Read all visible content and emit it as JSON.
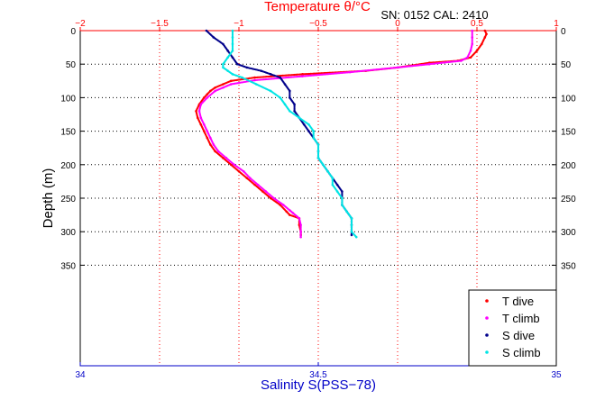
{
  "chart_data": {
    "type": "scatter",
    "title": "Temperature θ/°C",
    "info": "SN: 0152  CAL: 2410",
    "ylabel": "Depth (m)",
    "xlabel_bottom": "Salinity S(PSS−78)",
    "ylim": [
      0,
      500
    ],
    "y_reversed": true,
    "yticks": [
      0,
      50,
      100,
      150,
      200,
      250,
      300,
      350
    ],
    "ytick_labels": [
      "0",
      "50",
      "100",
      "150",
      "200",
      "250",
      "300",
      "350"
    ],
    "temperature_axis": {
      "position": "top",
      "range": [
        -2,
        1
      ],
      "ticks": [
        -2,
        -1.5,
        -1,
        -0.5,
        0,
        0.5,
        1
      ],
      "tick_labels": [
        "−2",
        "−1.5",
        "−1",
        "−0.5",
        "0",
        "0.5",
        "1"
      ],
      "color": "#ff0000"
    },
    "salinity_axis": {
      "position": "bottom",
      "range": [
        34,
        35
      ],
      "ticks": [
        34,
        34.5,
        35
      ],
      "tick_labels": [
        "34",
        "34.5",
        "35"
      ],
      "color": "#0000c8"
    },
    "grid": true,
    "legend_position": "bottom-right",
    "series": [
      {
        "name": "T dive",
        "axis": "temperature",
        "color": "#ff0000",
        "points": [
          [
            0.55,
            0
          ],
          [
            0.56,
            5
          ],
          [
            0.55,
            10
          ],
          [
            0.53,
            20
          ],
          [
            0.5,
            30
          ],
          [
            0.46,
            40
          ],
          [
            0.38,
            45
          ],
          [
            0.2,
            48
          ],
          [
            0.0,
            55
          ],
          [
            -0.2,
            60
          ],
          [
            -0.6,
            65
          ],
          [
            -0.9,
            70
          ],
          [
            -1.05,
            75
          ],
          [
            -1.1,
            80
          ],
          [
            -1.15,
            85
          ],
          [
            -1.18,
            90
          ],
          [
            -1.2,
            95
          ],
          [
            -1.22,
            100
          ],
          [
            -1.25,
            110
          ],
          [
            -1.27,
            120
          ],
          [
            -1.26,
            130
          ],
          [
            -1.24,
            140
          ],
          [
            -1.22,
            150
          ],
          [
            -1.2,
            160
          ],
          [
            -1.18,
            170
          ],
          [
            -1.15,
            180
          ],
          [
            -1.1,
            190
          ],
          [
            -1.05,
            200
          ],
          [
            -1.0,
            210
          ],
          [
            -0.95,
            220
          ],
          [
            -0.9,
            230
          ],
          [
            -0.85,
            240
          ],
          [
            -0.8,
            250
          ],
          [
            -0.74,
            260
          ],
          [
            -0.7,
            270
          ],
          [
            -0.68,
            275
          ],
          [
            -0.62,
            280
          ],
          [
            -0.62,
            290
          ],
          [
            -0.61,
            300
          ],
          [
            -0.61,
            305
          ]
        ]
      },
      {
        "name": "T climb",
        "axis": "temperature",
        "color": "#ff00ff",
        "points": [
          [
            0.47,
            0
          ],
          [
            0.47,
            10
          ],
          [
            0.47,
            20
          ],
          [
            0.46,
            30
          ],
          [
            0.44,
            40
          ],
          [
            0.4,
            45
          ],
          [
            0.2,
            50
          ],
          [
            0.0,
            55
          ],
          [
            -0.3,
            62
          ],
          [
            -0.6,
            68
          ],
          [
            -0.9,
            74
          ],
          [
            -1.05,
            80
          ],
          [
            -1.1,
            85
          ],
          [
            -1.15,
            90
          ],
          [
            -1.2,
            100
          ],
          [
            -1.24,
            110
          ],
          [
            -1.25,
            120
          ],
          [
            -1.24,
            130
          ],
          [
            -1.22,
            140
          ],
          [
            -1.2,
            150
          ],
          [
            -1.18,
            160
          ],
          [
            -1.16,
            170
          ],
          [
            -1.13,
            180
          ],
          [
            -1.08,
            190
          ],
          [
            -1.03,
            200
          ],
          [
            -0.97,
            210
          ],
          [
            -0.93,
            220
          ],
          [
            -0.88,
            230
          ],
          [
            -0.83,
            240
          ],
          [
            -0.78,
            250
          ],
          [
            -0.72,
            260
          ],
          [
            -0.68,
            268
          ],
          [
            -0.66,
            272
          ],
          [
            -0.62,
            280
          ],
          [
            -0.61,
            290
          ],
          [
            -0.61,
            300
          ],
          [
            -0.61,
            308
          ]
        ]
      },
      {
        "name": "S dive",
        "axis": "salinity",
        "color": "#00008b",
        "points": [
          [
            34.265,
            0
          ],
          [
            34.28,
            10
          ],
          [
            34.3,
            20
          ],
          [
            34.31,
            30
          ],
          [
            34.32,
            40
          ],
          [
            34.33,
            50
          ],
          [
            34.35,
            55
          ],
          [
            34.38,
            60
          ],
          [
            34.4,
            65
          ],
          [
            34.42,
            70
          ],
          [
            34.43,
            80
          ],
          [
            34.44,
            90
          ],
          [
            34.44,
            100
          ],
          [
            34.45,
            110
          ],
          [
            34.45,
            120
          ],
          [
            34.46,
            130
          ],
          [
            34.47,
            140
          ],
          [
            34.48,
            150
          ],
          [
            34.49,
            160
          ],
          [
            34.5,
            170
          ],
          [
            34.5,
            180
          ],
          [
            34.5,
            190
          ],
          [
            34.51,
            200
          ],
          [
            34.52,
            210
          ],
          [
            34.53,
            220
          ],
          [
            34.54,
            230
          ],
          [
            34.55,
            240
          ],
          [
            34.55,
            250
          ],
          [
            34.55,
            260
          ],
          [
            34.56,
            270
          ],
          [
            34.57,
            280
          ],
          [
            34.57,
            290
          ],
          [
            34.57,
            300
          ],
          [
            34.57,
            305
          ]
        ]
      },
      {
        "name": "S climb",
        "axis": "salinity",
        "color": "#00e5e5",
        "points": [
          [
            34.32,
            0
          ],
          [
            34.32,
            10
          ],
          [
            34.32,
            20
          ],
          [
            34.32,
            30
          ],
          [
            34.31,
            40
          ],
          [
            34.3,
            50
          ],
          [
            34.3,
            55
          ],
          [
            34.31,
            60
          ],
          [
            34.32,
            65
          ],
          [
            34.34,
            70
          ],
          [
            34.37,
            80
          ],
          [
            34.4,
            90
          ],
          [
            34.42,
            100
          ],
          [
            34.43,
            110
          ],
          [
            34.44,
            120
          ],
          [
            34.46,
            130
          ],
          [
            34.48,
            140
          ],
          [
            34.49,
            150
          ],
          [
            34.49,
            160
          ],
          [
            34.5,
            170
          ],
          [
            34.5,
            180
          ],
          [
            34.5,
            190
          ],
          [
            34.51,
            200
          ],
          [
            34.52,
            210
          ],
          [
            34.53,
            220
          ],
          [
            34.53,
            230
          ],
          [
            34.54,
            240
          ],
          [
            34.55,
            250
          ],
          [
            34.55,
            260
          ],
          [
            34.56,
            270
          ],
          [
            34.57,
            280
          ],
          [
            34.57,
            290
          ],
          [
            34.57,
            300
          ],
          [
            34.58,
            308
          ]
        ]
      }
    ]
  }
}
